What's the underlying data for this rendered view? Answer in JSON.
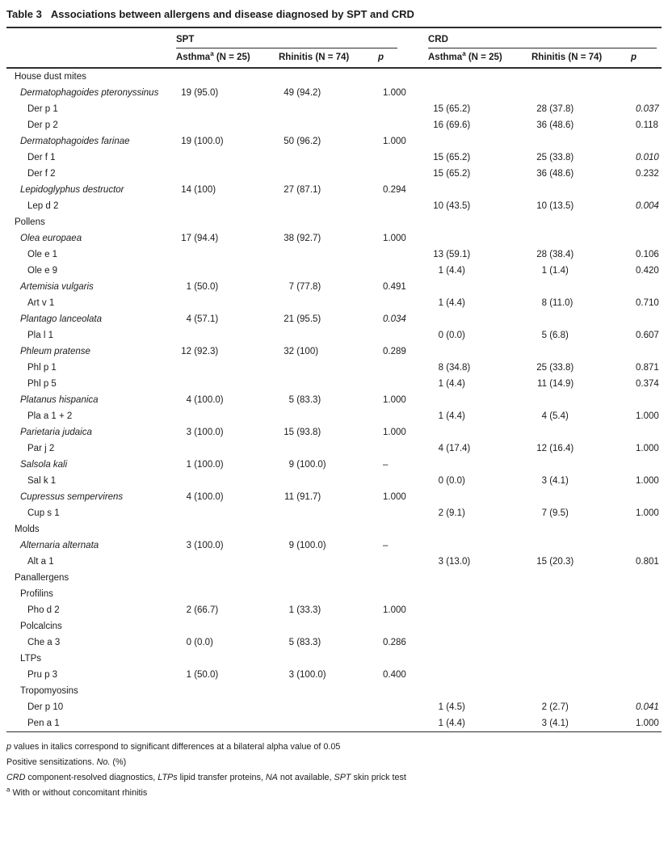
{
  "colors": {
    "background": "#ffffff",
    "text": "#1b1b1b",
    "rule": "#2d2d2d"
  },
  "title": {
    "label": "Table 3",
    "text": "Associations between allergens and disease diagnosed by SPT and CRD"
  },
  "header": {
    "spt": {
      "group": "SPT",
      "asthma": {
        "text": "Asthma",
        "sup": "a",
        "n": " (N = 25)"
      },
      "rhinitis": "Rhinitis (N = 74)",
      "p": "p"
    },
    "crd": {
      "group": "CRD",
      "asthma": {
        "text": "Asthma",
        "sup": "a",
        "n": " (N = 25)"
      },
      "rhinitis": "Rhinitis (N = 74)",
      "p": "p"
    }
  },
  "table": {
    "rows": [
      {
        "type": "section",
        "label": "House dust mites"
      },
      {
        "type": "species",
        "label": "Dermatophagoides pteronyssinus",
        "spt_asthma": "19 (95.0)",
        "spt_rhinitis": "49 (94.2)",
        "spt_p": "1.000"
      },
      {
        "type": "component",
        "label": "Der p 1",
        "crd_asthma": "15 (65.2)",
        "crd_rhinitis": "28 (37.8)",
        "crd_p": "0.037",
        "italic_crd_p": true
      },
      {
        "type": "component",
        "label": "Der p 2",
        "crd_asthma": "16 (69.6)",
        "crd_rhinitis": "36 (48.6)",
        "crd_p": "0.118"
      },
      {
        "type": "species",
        "label": "Dermatophagoides farinae",
        "spt_asthma": "19 (100.0)",
        "spt_rhinitis": "50 (96.2)",
        "spt_p": "1.000"
      },
      {
        "type": "component",
        "label": "Der f 1",
        "crd_asthma": "15 (65.2)",
        "crd_rhinitis": "25 (33.8)",
        "crd_p": "0.010",
        "italic_crd_p": true
      },
      {
        "type": "component",
        "label": "Der f 2",
        "crd_asthma": "15 (65.2)",
        "crd_rhinitis": "36 (48.6)",
        "crd_p": "0.232"
      },
      {
        "type": "species",
        "label": "Lepidoglyphus destructor",
        "spt_asthma": "14 (100)",
        "spt_rhinitis": "27 (87.1)",
        "spt_p": "0.294"
      },
      {
        "type": "component",
        "label": "Lep d 2",
        "crd_asthma": "10 (43.5)",
        "crd_rhinitis": "10 (13.5)",
        "crd_p": "0.004",
        "italic_crd_p": true
      },
      {
        "type": "section",
        "label": "Pollens"
      },
      {
        "type": "species",
        "label": "Olea europaea",
        "spt_asthma": "17 (94.4)",
        "spt_rhinitis": "38 (92.7)",
        "spt_p": "1.000"
      },
      {
        "type": "component",
        "label": "Ole e 1",
        "crd_asthma": "13 (59.1)",
        "crd_rhinitis": "28 (38.4)",
        "crd_p": "0.106"
      },
      {
        "type": "component",
        "label": "Ole e 9",
        "crd_asthma": "1 (4.4)",
        "crd_rhinitis": "1 (1.4)",
        "crd_p": "0.420"
      },
      {
        "type": "species",
        "label": "Artemisia vulgaris",
        "spt_asthma": "1 (50.0)",
        "spt_rhinitis": "7 (77.8)",
        "spt_p": "0.491"
      },
      {
        "type": "component",
        "label": "Art v 1",
        "crd_asthma": "1 (4.4)",
        "crd_rhinitis": "8 (11.0)",
        "crd_p": "0.710"
      },
      {
        "type": "species",
        "label": "Plantago lanceolata",
        "spt_asthma": "4 (57.1)",
        "spt_rhinitis": "21 (95.5)",
        "spt_p": "0.034",
        "italic_spt_p": true
      },
      {
        "type": "component",
        "label": "Pla l 1",
        "crd_asthma": "0 (0.0)",
        "crd_rhinitis": "5 (6.8)",
        "crd_p": "0.607"
      },
      {
        "type": "species",
        "label": "Phleum pratense",
        "spt_asthma": "12 (92.3)",
        "spt_rhinitis": "32 (100)",
        "spt_p": "0.289"
      },
      {
        "type": "component",
        "label": "Phl p 1",
        "crd_asthma": "8 (34.8)",
        "crd_rhinitis": "25 (33.8)",
        "crd_p": "0.871"
      },
      {
        "type": "component",
        "label": "Phl p 5",
        "crd_asthma": "1 (4.4)",
        "crd_rhinitis": "11 (14.9)",
        "crd_p": "0.374"
      },
      {
        "type": "species",
        "label": "Platanus hispanica",
        "spt_asthma": "4 (100.0)",
        "spt_rhinitis": "5 (83.3)",
        "spt_p": "1.000"
      },
      {
        "type": "component",
        "label": "Pla a 1 + 2",
        "crd_asthma": "1 (4.4)",
        "crd_rhinitis": "4 (5.4)",
        "crd_p": "1.000"
      },
      {
        "type": "species",
        "label": "Parietaria judaica",
        "spt_asthma": "3 (100.0)",
        "spt_rhinitis": "15 (93.8)",
        "spt_p": "1.000"
      },
      {
        "type": "component",
        "label": "Par j 2",
        "crd_asthma": "4 (17.4)",
        "crd_rhinitis": "12 (16.4)",
        "crd_p": "1.000"
      },
      {
        "type": "species",
        "label": "Salsola kali",
        "spt_asthma": "1 (100.0)",
        "spt_rhinitis": "9 (100.0)",
        "spt_p": "–"
      },
      {
        "type": "component",
        "label": "Sal k 1",
        "crd_asthma": "0 (0.0)",
        "crd_rhinitis": "3 (4.1)",
        "crd_p": "1.000"
      },
      {
        "type": "species",
        "label": "Cupressus sempervirens",
        "spt_asthma": "4 (100.0)",
        "spt_rhinitis": "11 (91.7)",
        "spt_p": "1.000"
      },
      {
        "type": "component",
        "label": "Cup s 1",
        "crd_asthma": "2 (9.1)",
        "crd_rhinitis": "7 (9.5)",
        "crd_p": "1.000"
      },
      {
        "type": "section",
        "label": "Molds"
      },
      {
        "type": "species",
        "label": "Alternaria alternata",
        "spt_asthma": "3 (100.0)",
        "spt_rhinitis": "9 (100.0)",
        "spt_p": "–"
      },
      {
        "type": "component",
        "label": "Alt a 1",
        "crd_asthma": "3 (13.0)",
        "crd_rhinitis": "15 (20.3)",
        "crd_p": "0.801"
      },
      {
        "type": "section",
        "label": "Panallergens"
      },
      {
        "type": "subsection",
        "label": "Profilins"
      },
      {
        "type": "component",
        "label": "Pho d 2",
        "spt_asthma": "2 (66.7)",
        "spt_rhinitis": "1 (33.3)",
        "spt_p": "1.000"
      },
      {
        "type": "subsection",
        "label": "Polcalcins"
      },
      {
        "type": "component",
        "label": "Che a 3",
        "spt_asthma": "0 (0.0)",
        "spt_rhinitis": "5 (83.3)",
        "spt_p": "0.286"
      },
      {
        "type": "subsection",
        "label": "LTPs"
      },
      {
        "type": "component",
        "label": "Pru p 3",
        "spt_asthma": "1 (50.0)",
        "spt_rhinitis": "3 (100.0)",
        "spt_p": "0.400"
      },
      {
        "type": "subsection",
        "label": "Tropomyosins"
      },
      {
        "type": "component",
        "label": "Der p 10",
        "crd_asthma": "1 (4.5)",
        "crd_rhinitis": "2 (2.7)",
        "crd_p": "0.041",
        "italic_crd_p": true
      },
      {
        "type": "component",
        "label": "Pen a 1",
        "crd_asthma": "1 (4.4)",
        "crd_rhinitis": "3 (4.1)",
        "crd_p": "1.000"
      }
    ]
  },
  "footnotes": [
    {
      "parts": [
        {
          "text": "p",
          "style": "italic"
        },
        {
          "text": " values in italics correspond to significant differences at a bilateral alpha value of 0.05",
          "style": ""
        }
      ]
    },
    {
      "parts": [
        {
          "text": "Positive sensitizations. ",
          "style": ""
        },
        {
          "text": "No.",
          "style": "italic"
        },
        {
          "text": " (%)",
          "style": ""
        }
      ]
    },
    {
      "parts": [
        {
          "text": "CRD",
          "style": "italic"
        },
        {
          "text": " component-resolved diagnostics, ",
          "style": ""
        },
        {
          "text": "LTPs",
          "style": "italic"
        },
        {
          "text": " lipid transfer proteins, ",
          "style": ""
        },
        {
          "text": "NA",
          "style": "italic"
        },
        {
          "text": " not available, ",
          "style": ""
        },
        {
          "text": "SPT",
          "style": "italic"
        },
        {
          "text": " skin prick test",
          "style": ""
        }
      ]
    },
    {
      "parts": [
        {
          "text": "a",
          "style": "sup"
        },
        {
          "text": " With or without concomitant rhinitis",
          "style": ""
        }
      ]
    }
  ]
}
